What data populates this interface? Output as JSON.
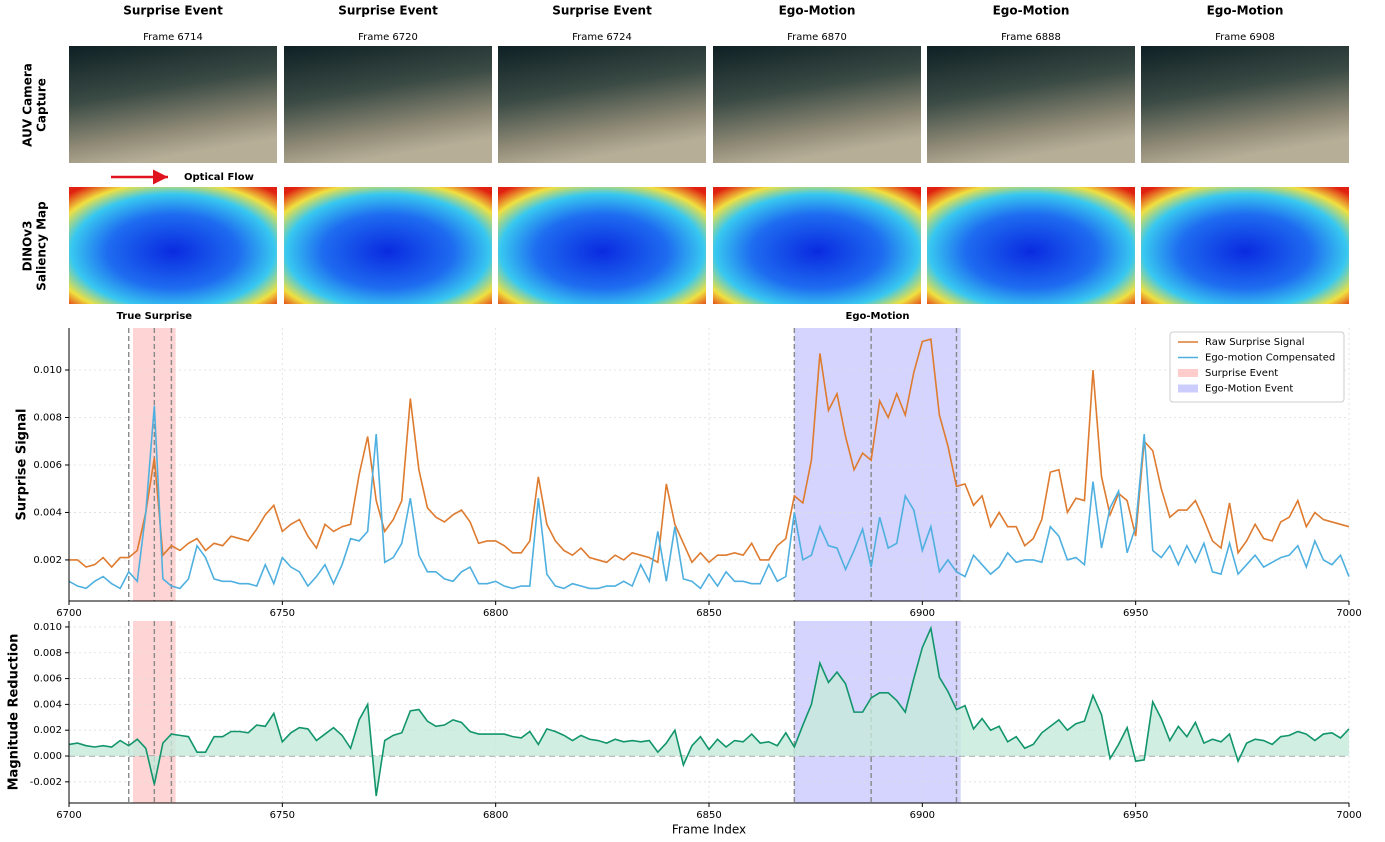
{
  "panels": [
    {
      "event": "Surprise Event",
      "frame": "Frame 6714",
      "color": "#d9661f"
    },
    {
      "event": "Surprise Event",
      "frame": "Frame 6720",
      "color": "#d9661f"
    },
    {
      "event": "Surprise Event",
      "frame": "Frame 6724",
      "color": "#d9661f"
    },
    {
      "event": "Ego-Motion",
      "frame": "Frame 6870",
      "color": "#56b0dd"
    },
    {
      "event": "Ego-Motion",
      "frame": "Frame 6888",
      "color": "#56b0dd"
    },
    {
      "event": "Ego-Motion",
      "frame": "Frame 6908",
      "color": "#56b0dd"
    }
  ],
  "row_labels": [
    [
      "AUV Camera",
      "Capture"
    ],
    [
      "DINOv3",
      "Saliency Map"
    ]
  ],
  "optical_flow_label": "Optical Flow",
  "chart_data": [
    {
      "type": "line",
      "ylabel": "Surprise Signal",
      "grid": true,
      "legend": "upper right",
      "xlim": [
        6700,
        7000
      ],
      "xticks": [
        6700,
        6750,
        6800,
        6850,
        6900,
        6950,
        7000
      ],
      "ylim": [
        0.00027,
        0.01177
      ],
      "yticks": [
        0.002,
        0.004,
        0.006,
        0.008,
        {
          "value": 0.01,
          "label": "0.010"
        }
      ],
      "x": [
        6700,
        6702,
        6704,
        6706,
        6708,
        6710,
        6712,
        6714,
        6716,
        6718,
        6720,
        6722,
        6724,
        6726,
        6728,
        6730,
        6732,
        6734,
        6736,
        6738,
        6740,
        6742,
        6744,
        6746,
        6748,
        6750,
        6752,
        6754,
        6756,
        6758,
        6760,
        6762,
        6764,
        6766,
        6768,
        6770,
        6772,
        6774,
        6776,
        6778,
        6780,
        6782,
        6784,
        6786,
        6788,
        6790,
        6792,
        6794,
        6796,
        6798,
        6800,
        6802,
        6804,
        6806,
        6808,
        6810,
        6812,
        6814,
        6816,
        6818,
        6820,
        6822,
        6824,
        6826,
        6828,
        6830,
        6832,
        6834,
        6836,
        6838,
        6840,
        6842,
        6844,
        6846,
        6848,
        6850,
        6852,
        6854,
        6856,
        6858,
        6860,
        6862,
        6864,
        6866,
        6868,
        6870,
        6872,
        6874,
        6876,
        6878,
        6880,
        6882,
        6884,
        6886,
        6888,
        6890,
        6892,
        6894,
        6896,
        6898,
        6900,
        6902,
        6904,
        6906,
        6908,
        6910,
        6912,
        6914,
        6916,
        6918,
        6920,
        6922,
        6924,
        6926,
        6928,
        6930,
        6932,
        6934,
        6936,
        6938,
        6940,
        6942,
        6944,
        6946,
        6948,
        6950,
        6952,
        6954,
        6956,
        6958,
        6960,
        6962,
        6964,
        6966,
        6968,
        6970,
        6972,
        6974,
        6976,
        6978,
        6980,
        6982,
        6984,
        6986,
        6988,
        6990,
        6992,
        6994,
        6996,
        6998,
        7000
      ],
      "series": [
        {
          "name": "Raw Surprise Signal",
          "color": "#de7b2f",
          "values": [
            0.002,
            0.002,
            0.0017,
            0.0018,
            0.0021,
            0.0017,
            0.0021,
            0.0021,
            0.0024,
            0.004,
            0.0063,
            0.0022,
            0.0026,
            0.0024,
            0.0027,
            0.0029,
            0.0024,
            0.0027,
            0.0026,
            0.003,
            0.0029,
            0.0028,
            0.0033,
            0.0039,
            0.0043,
            0.0032,
            0.0035,
            0.0037,
            0.003,
            0.0025,
            0.0035,
            0.0032,
            0.0034,
            0.0035,
            0.0056,
            0.0072,
            0.0045,
            0.0032,
            0.0037,
            0.0045,
            0.0088,
            0.0058,
            0.0042,
            0.0038,
            0.0036,
            0.0039,
            0.0041,
            0.0036,
            0.0027,
            0.0028,
            0.0028,
            0.0026,
            0.0023,
            0.0023,
            0.0028,
            0.0055,
            0.0035,
            0.0028,
            0.0024,
            0.0022,
            0.0025,
            0.0021,
            0.002,
            0.0019,
            0.0022,
            0.002,
            0.0023,
            0.0022,
            0.0021,
            0.0019,
            0.0052,
            0.0035,
            0.0027,
            0.0019,
            0.0023,
            0.0019,
            0.0022,
            0.0022,
            0.0023,
            0.0022,
            0.0027,
            0.002,
            0.002,
            0.0026,
            0.0029,
            0.0047,
            0.0044,
            0.0062,
            0.0107,
            0.0083,
            0.009,
            0.0072,
            0.0058,
            0.0065,
            0.0062,
            0.0087,
            0.008,
            0.009,
            0.0081,
            0.0099,
            0.0112,
            0.0113,
            0.0081,
            0.0068,
            0.0051,
            0.0052,
            0.0043,
            0.0047,
            0.0034,
            0.004,
            0.0034,
            0.0034,
            0.0026,
            0.0029,
            0.0037,
            0.0057,
            0.0058,
            0.004,
            0.0046,
            0.0045,
            0.01,
            0.0055,
            0.0039,
            0.0048,
            0.0045,
            0.003,
            0.007,
            0.0066,
            0.005,
            0.0038,
            0.0041,
            0.0041,
            0.0045,
            0.0037,
            0.0028,
            0.0025,
            0.0044,
            0.0023,
            0.0028,
            0.0035,
            0.0029,
            0.0028,
            0.0036,
            0.0038,
            0.0045,
            0.0034,
            0.004,
            0.0037,
            0.0036,
            0.0035,
            0.0034
          ]
        },
        {
          "name": "Ego-motion Compensated",
          "color": "#4fb0e0",
          "values": [
            0.0011,
            0.0009,
            0.0008,
            0.0011,
            0.0013,
            0.001,
            0.0008,
            0.0015,
            0.0011,
            0.004,
            0.0085,
            0.0012,
            0.0009,
            0.0008,
            0.0012,
            0.0026,
            0.0021,
            0.0012,
            0.0011,
            0.0011,
            0.001,
            0.001,
            0.0009,
            0.0018,
            0.001,
            0.0021,
            0.0017,
            0.0015,
            0.0009,
            0.0013,
            0.0018,
            0.001,
            0.0018,
            0.0029,
            0.0028,
            0.0032,
            0.0073,
            0.0019,
            0.0021,
            0.0027,
            0.0046,
            0.0022,
            0.0015,
            0.0015,
            0.0012,
            0.0011,
            0.0015,
            0.0017,
            0.001,
            0.001,
            0.0011,
            0.0009,
            0.0008,
            0.0009,
            0.0009,
            0.0046,
            0.0014,
            0.0009,
            0.0008,
            0.001,
            0.0009,
            0.0008,
            0.0008,
            0.0009,
            0.0009,
            0.0011,
            0.0009,
            0.0018,
            0.0011,
            0.0032,
            0.0011,
            0.0034,
            0.0012,
            0.0011,
            0.0008,
            0.0014,
            0.0009,
            0.0015,
            0.0011,
            0.0011,
            0.001,
            0.001,
            0.0018,
            0.0011,
            0.0013,
            0.004,
            0.002,
            0.0022,
            0.0034,
            0.0026,
            0.0025,
            0.0016,
            0.0024,
            0.0033,
            0.0017,
            0.0038,
            0.0025,
            0.0027,
            0.0047,
            0.0041,
            0.0024,
            0.0034,
            0.0015,
            0.002,
            0.0015,
            0.0013,
            0.0022,
            0.0018,
            0.0014,
            0.0017,
            0.0023,
            0.0019,
            0.002,
            0.002,
            0.0019,
            0.0034,
            0.003,
            0.002,
            0.0021,
            0.0018,
            0.0053,
            0.0025,
            0.0042,
            0.0049,
            0.0023,
            0.0034,
            0.0073,
            0.0024,
            0.0021,
            0.0026,
            0.0018,
            0.0026,
            0.0019,
            0.0027,
            0.0015,
            0.0014,
            0.0027,
            0.0014,
            0.0018,
            0.0022,
            0.0017,
            0.0019,
            0.0021,
            0.0022,
            0.0026,
            0.0017,
            0.0028,
            0.002,
            0.0018,
            0.0022,
            0.0013
          ]
        }
      ],
      "events": [
        {
          "name": "Surprise Event",
          "color": "#ffcccc",
          "span": [
            6715,
            6725
          ],
          "lines": [
            6714,
            6720,
            6724
          ],
          "annotation": "True Surprise",
          "annotation_color": "#d9661f"
        },
        {
          "name": "Ego-Motion Event",
          "color": "#ccccff",
          "span": [
            6870,
            6909
          ],
          "lines": [
            6870,
            6888,
            6908
          ],
          "annotation": "Ego-Motion",
          "annotation_color": "#56b0dd"
        }
      ]
    },
    {
      "type": "area",
      "ylabel": "Magnitude Reduction",
      "xlabel": "Frame Index",
      "grid": true,
      "xlim": [
        6700,
        7000
      ],
      "xticks": [
        6700,
        6750,
        6800,
        6850,
        6900,
        6950,
        7000
      ],
      "ylim": [
        -0.00364,
        0.01046
      ],
      "yticks": [
        -0.002,
        {
          "value": 0,
          "label": "0.000"
        },
        0.002,
        0.004,
        0.006,
        0.008,
        {
          "value": 0.01,
          "label": "0.010"
        }
      ],
      "baseline": 0,
      "x": [
        6700,
        6702,
        6704,
        6706,
        6708,
        6710,
        6712,
        6714,
        6716,
        6718,
        6720,
        6722,
        6724,
        6726,
        6728,
        6730,
        6732,
        6734,
        6736,
        6738,
        6740,
        6742,
        6744,
        6746,
        6748,
        6750,
        6752,
        6754,
        6756,
        6758,
        6760,
        6762,
        6764,
        6766,
        6768,
        6770,
        6772,
        6774,
        6776,
        6778,
        6780,
        6782,
        6784,
        6786,
        6788,
        6790,
        6792,
        6794,
        6796,
        6798,
        6800,
        6802,
        6804,
        6806,
        6808,
        6810,
        6812,
        6814,
        6816,
        6818,
        6820,
        6822,
        6824,
        6826,
        6828,
        6830,
        6832,
        6834,
        6836,
        6838,
        6840,
        6842,
        6844,
        6846,
        6848,
        6850,
        6852,
        6854,
        6856,
        6858,
        6860,
        6862,
        6864,
        6866,
        6868,
        6870,
        6872,
        6874,
        6876,
        6878,
        6880,
        6882,
        6884,
        6886,
        6888,
        6890,
        6892,
        6894,
        6896,
        6898,
        6900,
        6902,
        6904,
        6906,
        6908,
        6910,
        6912,
        6914,
        6916,
        6918,
        6920,
        6922,
        6924,
        6926,
        6928,
        6930,
        6932,
        6934,
        6936,
        6938,
        6940,
        6942,
        6944,
        6946,
        6948,
        6950,
        6952,
        6954,
        6956,
        6958,
        6960,
        6962,
        6964,
        6966,
        6968,
        6970,
        6972,
        6974,
        6976,
        6978,
        6980,
        6982,
        6984,
        6986,
        6988,
        6990,
        6992,
        6994,
        6996,
        6998,
        7000
      ],
      "series": [
        {
          "color": "#12956c",
          "fill": "#c5eadb",
          "values": [
            0.0009,
            0.001,
            0.0008,
            0.0007,
            0.0008,
            0.0007,
            0.0012,
            0.0008,
            0.0013,
            0.0006,
            -0.0022,
            0.001,
            0.0017,
            0.0016,
            0.0015,
            0.0003,
            0.0003,
            0.0015,
            0.0015,
            0.0019,
            0.0019,
            0.0018,
            0.0024,
            0.0023,
            0.0033,
            0.0011,
            0.0018,
            0.0022,
            0.0021,
            0.0012,
            0.0017,
            0.0022,
            0.0016,
            0.0006,
            0.0028,
            0.004,
            -0.0031,
            0.0012,
            0.0016,
            0.0018,
            0.0035,
            0.0036,
            0.0027,
            0.0023,
            0.0024,
            0.0028,
            0.0026,
            0.0019,
            0.0017,
            0.0017,
            0.0017,
            0.0017,
            0.0015,
            0.0014,
            0.0019,
            0.0009,
            0.0021,
            0.0019,
            0.0016,
            0.0012,
            0.0016,
            0.0013,
            0.0012,
            0.001,
            0.0013,
            0.0011,
            0.0012,
            0.0011,
            0.0012,
            0.0003,
            0.001,
            0.002,
            -0.0007,
            0.0008,
            0.0015,
            0.0005,
            0.0013,
            0.0007,
            0.0012,
            0.0011,
            0.0017,
            0.001,
            0.0011,
            0.0008,
            0.0018,
            0.0007,
            0.0024,
            0.004,
            0.0072,
            0.0057,
            0.0065,
            0.0056,
            0.0034,
            0.0034,
            0.0045,
            0.0049,
            0.0049,
            0.0043,
            0.0034,
            0.006,
            0.0084,
            0.0099,
            0.0061,
            0.005,
            0.0036,
            0.0039,
            0.0021,
            0.0029,
            0.002,
            0.0023,
            0.0011,
            0.0015,
            0.0006,
            0.0009,
            0.0018,
            0.0023,
            0.0028,
            0.002,
            0.0025,
            0.0027,
            0.0047,
            0.0032,
            -0.0002,
            0.0009,
            0.0022,
            -0.0004,
            -0.0003,
            0.0042,
            0.0029,
            0.0012,
            0.0023,
            0.0015,
            0.0026,
            0.001,
            0.0013,
            0.0011,
            0.0017,
            -0.0004,
            0.001,
            0.0013,
            0.0012,
            0.0009,
            0.0015,
            0.0016,
            0.0019,
            0.0017,
            0.0012,
            0.0017,
            0.0018,
            0.0014,
            0.0021
          ]
        }
      ],
      "events": [
        {
          "color": "#ffcccc",
          "span": [
            6715,
            6725
          ],
          "lines": [
            6714,
            6720,
            6724
          ]
        },
        {
          "color": "#ccccff",
          "span": [
            6870,
            6909
          ],
          "lines": [
            6870,
            6888,
            6908
          ]
        }
      ]
    }
  ]
}
